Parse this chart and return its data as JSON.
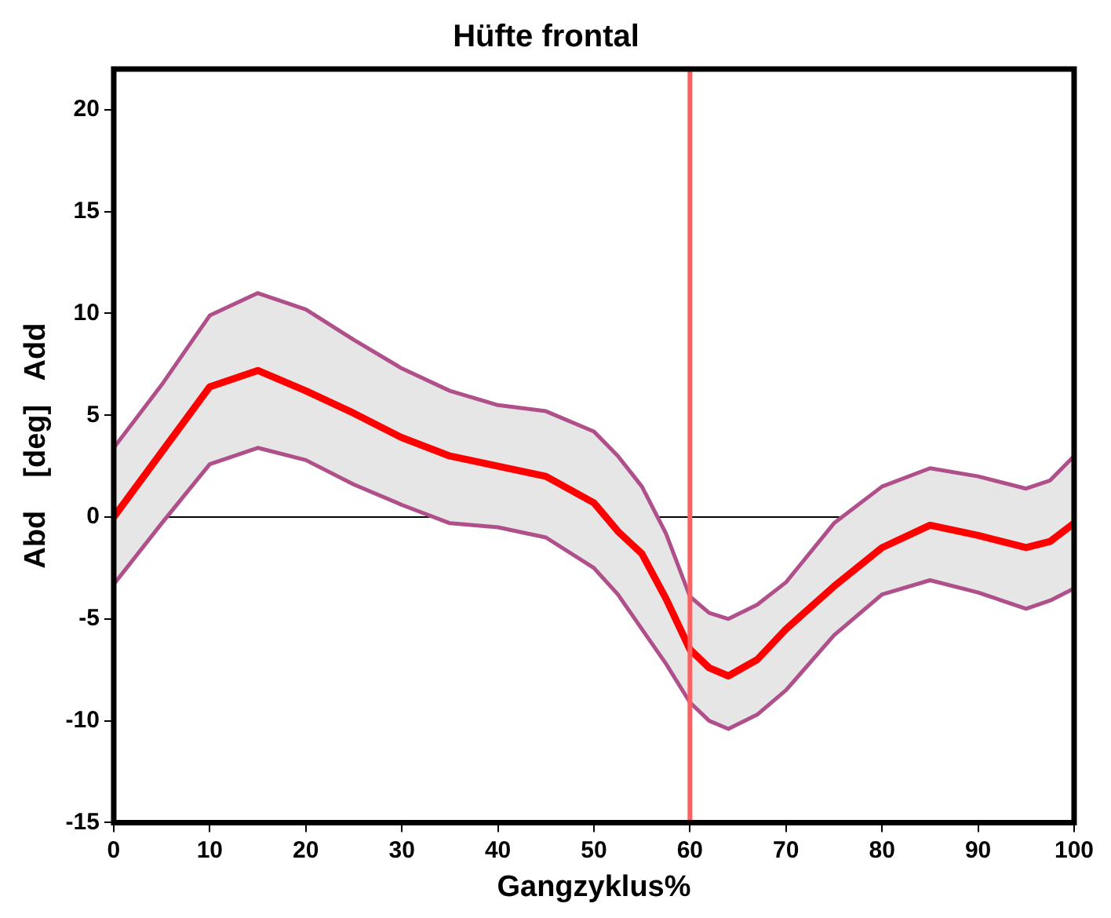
{
  "chart_data": {
    "type": "line",
    "title": "Hüfte frontal",
    "xlabel": "Gangzyklus%",
    "ylabel": "Abd    [deg]   Add",
    "xlim": [
      0,
      100
    ],
    "xticks": [
      0,
      10,
      20,
      30,
      40,
      50,
      60,
      70,
      80,
      90,
      100
    ],
    "ylim": [
      -15,
      22
    ],
    "yticks": [
      -15,
      -10,
      -5,
      0,
      5,
      10,
      15,
      20
    ],
    "grid": false,
    "legend": false,
    "marker": "none",
    "line_style": "solid",
    "x": [
      0,
      5,
      10,
      15,
      20,
      25,
      30,
      35,
      40,
      45,
      50,
      52.5,
      55,
      57.5,
      60,
      62,
      64,
      67,
      70,
      75,
      80,
      85,
      90,
      95,
      97.5,
      100
    ],
    "series": [
      {
        "color": "#ff0000",
        "values": [
          0,
          3.2,
          6.4,
          7.2,
          6.2,
          5.1,
          3.9,
          3.0,
          2.5,
          2.0,
          0.7,
          -0.7,
          -1.8,
          -4.0,
          -6.5,
          -7.4,
          -7.8,
          -7.0,
          -5.5,
          -3.4,
          -1.5,
          -0.4,
          -0.9,
          -1.5,
          -1.2,
          -0.3
        ],
        "upper": [
          3.4,
          6.5,
          9.9,
          11.0,
          10.2,
          8.7,
          7.3,
          6.2,
          5.5,
          5.2,
          4.2,
          3.0,
          1.5,
          -0.8,
          -3.9,
          -4.7,
          -5.0,
          -4.3,
          -3.2,
          -0.3,
          1.5,
          2.4,
          2.0,
          1.4,
          1.8,
          3.0
        ],
        "lower": [
          -3.3,
          -0.3,
          2.6,
          3.4,
          2.8,
          1.6,
          0.6,
          -0.3,
          -0.5,
          -1.0,
          -2.5,
          -3.8,
          -5.5,
          -7.2,
          -9.1,
          -10.0,
          -10.4,
          -9.7,
          -8.5,
          -5.8,
          -3.8,
          -3.1,
          -3.7,
          -4.5,
          -4.1,
          -3.5
        ]
      },
      {
        "color": "#b0508a",
        "values": [
          3.4,
          6.5,
          9.9,
          11.0,
          10.2,
          8.7,
          7.3,
          6.2,
          5.5,
          5.2,
          4.2,
          3.0,
          1.5,
          -0.8,
          -3.9,
          -4.7,
          -5.0,
          -4.3,
          -3.2,
          -0.3,
          1.5,
          2.4,
          2.0,
          1.4,
          1.8,
          3.0
        ]
      },
      {
        "color": "#b0508a",
        "values": [
          -3.3,
          -0.3,
          2.6,
          3.4,
          2.8,
          1.6,
          0.6,
          -0.3,
          -0.5,
          -1.0,
          -2.5,
          -3.8,
          -5.5,
          -7.2,
          -9.1,
          -10.0,
          -10.4,
          -9.7,
          -8.5,
          -5.8,
          -3.8,
          -3.1,
          -3.7,
          -4.5,
          -4.1,
          -3.5
        ]
      }
    ],
    "ref_lines": [
      {
        "axis": "y",
        "value": 0,
        "color": "#000000"
      },
      {
        "axis": "x",
        "value": 60,
        "color": "#ff6060"
      }
    ]
  }
}
